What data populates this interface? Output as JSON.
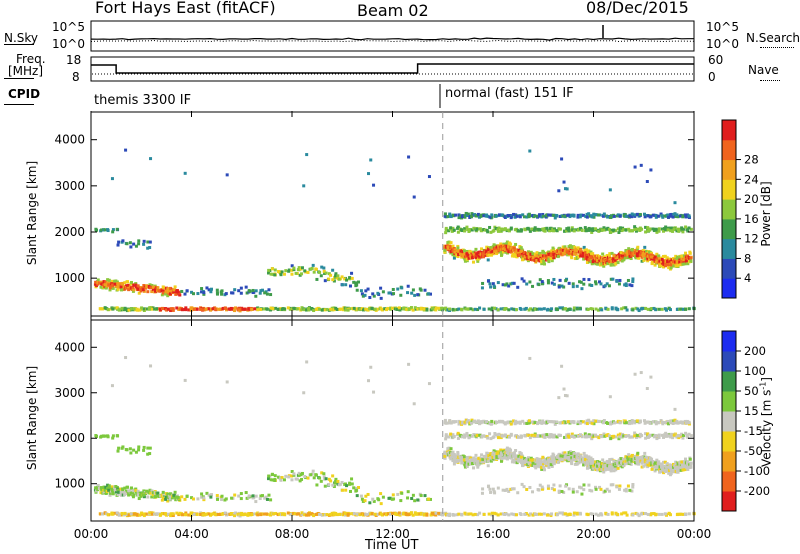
{
  "header": {
    "title": "Fort Hays East (fitACF)",
    "beam": "Beam 02",
    "date": "08/Dec/2015"
  },
  "noise_panel": {
    "left_label": "N.Sky",
    "right_label": "N.Search",
    "left_ticks": [
      "10^5",
      "10^0"
    ],
    "right_ticks": [
      "10^5",
      "10^0"
    ]
  },
  "freq_panel": {
    "left_label_1": "Freq.",
    "left_label_2": "[MHz]",
    "left_ticks": [
      "18",
      "8"
    ],
    "right_label": "Nave",
    "right_ticks": [
      "60",
      "0"
    ]
  },
  "cpid": {
    "label": "CPID",
    "mode_1": "themis 3300 IF",
    "mode_2": "normal (fast) 151 IF",
    "mode_2_start_hour": 14
  },
  "chart_data": [
    {
      "type": "heatmap",
      "name": "Power",
      "ylabel": "Slant Range [km]",
      "ylim": [
        180,
        4600
      ],
      "yticks": [
        1000,
        2000,
        3000,
        4000
      ],
      "xlim": [
        0,
        24
      ],
      "colorbar": {
        "label": "Power [dB]",
        "ticks": [
          "4",
          "8",
          "12",
          "16",
          "20",
          "24",
          "28"
        ],
        "colors": [
          "#1c2cf0",
          "#2c4ab8",
          "#2a8a9e",
          "#3e9b4a",
          "#8cc83c",
          "#f0d21e",
          "#f0a01e",
          "#f0641e",
          "#e01e1e"
        ]
      }
    },
    {
      "type": "heatmap",
      "name": "Velocity",
      "ylabel": "Slant Range [km]",
      "ylim": [
        180,
        4600
      ],
      "yticks": [
        1000,
        2000,
        3000,
        4000
      ],
      "xlim": [
        0,
        24
      ],
      "xlabel": "Time UT",
      "xticks": [
        "00:00",
        "04:00",
        "08:00",
        "12:00",
        "16:00",
        "20:00",
        "00:00"
      ],
      "colorbar": {
        "label": "Velocity [m s",
        "label_sup": "-1",
        "label_end": "]",
        "ticks": [
          "-200",
          "-100",
          "-50",
          "-15",
          "15",
          "50",
          "100",
          "200"
        ],
        "colors": [
          "#e01e1e",
          "#f0641e",
          "#f0a01e",
          "#f0d21e",
          "#c8c8c0",
          "#7cc83c",
          "#3e9b4a",
          "#2c4ab8",
          "#1c2cf0"
        ]
      }
    }
  ]
}
